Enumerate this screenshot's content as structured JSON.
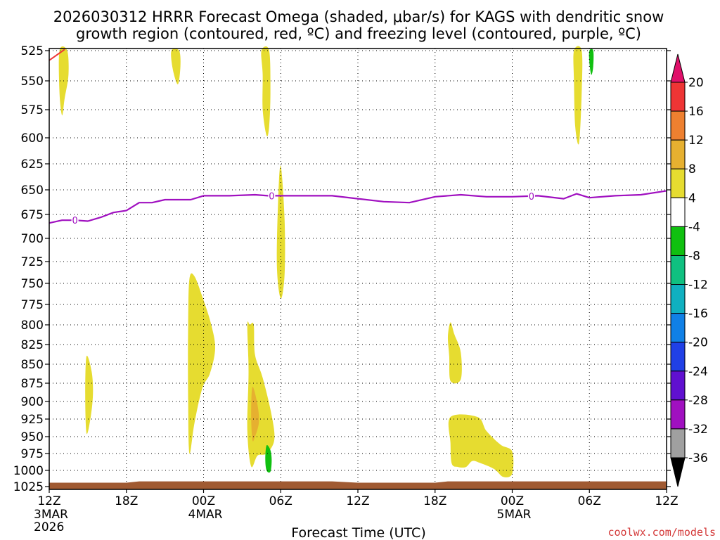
{
  "chart_data": {
    "type": "heatmap",
    "title_line1": "2026030312 HRRR Forecast Omega (shaded, μbar/s) for KAGS with dendritic snow",
    "title_line2": "growth region (contoured, red, ºC) and freezing level (contoured, purple, ºC)",
    "xlabel": "Forecast Time (UTC)",
    "credit": "coolwx.com/models",
    "x_range_hours": [
      0,
      48
    ],
    "x_ticks": [
      {
        "hour": 0,
        "label": "12Z",
        "date": "3MAR",
        "year": "2026"
      },
      {
        "hour": 6,
        "label": "18Z",
        "date": "",
        "year": ""
      },
      {
        "hour": 12,
        "label": "00Z",
        "date": "4MAR",
        "year": ""
      },
      {
        "hour": 18,
        "label": "06Z",
        "date": "",
        "year": ""
      },
      {
        "hour": 24,
        "label": "12Z",
        "date": "",
        "year": ""
      },
      {
        "hour": 30,
        "label": "18Z",
        "date": "",
        "year": ""
      },
      {
        "hour": 36,
        "label": "00Z",
        "date": "5MAR",
        "year": ""
      },
      {
        "hour": 42,
        "label": "06Z",
        "date": "",
        "year": ""
      },
      {
        "hour": 48,
        "label": "12Z",
        "date": "",
        "year": ""
      }
    ],
    "y_ticks_hPa": [
      525,
      550,
      575,
      600,
      625,
      650,
      675,
      700,
      725,
      750,
      775,
      800,
      825,
      850,
      875,
      900,
      925,
      950,
      975,
      1000,
      1025
    ],
    "y_range_hPa": [
      525,
      1025
    ],
    "colorbar": {
      "labels": [
        "20",
        "16",
        "12",
        "8",
        "4",
        "-4",
        "-8",
        "-12",
        "-16",
        "-20",
        "-24",
        "-28",
        "-32",
        "-36"
      ],
      "colors": [
        "#ee3535",
        "#ee8030",
        "#e6b030",
        "#e6dc30",
        "#ffffff",
        "#10c010",
        "#10c080",
        "#10b0c0",
        "#1080e6",
        "#2040e6",
        "#6010d0",
        "#a010c0",
        "#a0a0a0"
      ],
      "top_arrow_color": "#e0106a",
      "bottom_arrow_color": "#000000"
    },
    "freezing_level": {
      "name": "freezing level",
      "color": "#a010c0",
      "label": "0",
      "label_hours": [
        2,
        17.3,
        37.5
      ],
      "hours": [
        0,
        1,
        2,
        3,
        4,
        5,
        6,
        7,
        8,
        9,
        10,
        11,
        12,
        14,
        16,
        17,
        18,
        20,
        22,
        24,
        26,
        28,
        30,
        32,
        34,
        36,
        38,
        40,
        41,
        42,
        44,
        46,
        48
      ],
      "pressure_hPa": [
        684,
        681,
        681,
        682,
        678,
        673,
        671,
        663,
        663,
        660,
        660,
        660,
        656,
        656,
        655,
        656,
        656,
        656,
        656,
        659,
        662,
        663,
        657,
        655,
        657,
        657,
        656,
        659,
        654,
        658,
        656,
        655,
        651
      ]
    },
    "dgz_contour": {
      "name": "dendritic snow growth region",
      "color": "#ee3535",
      "hours": [
        0,
        1.2
      ],
      "pressure_hPa": [
        533,
        524
      ]
    },
    "omega_regions": [
      {
        "value": 4,
        "color": "#e6dc30",
        "points": [
          [
            0.8,
            525
          ],
          [
            1.4,
            525
          ],
          [
            1.5,
            545
          ],
          [
            1.2,
            565
          ],
          [
            1.0,
            580
          ],
          [
            0.8,
            560
          ]
        ]
      },
      {
        "value": 4,
        "color": "#e6dc30",
        "points": [
          [
            9.5,
            525
          ],
          [
            10.1,
            525
          ],
          [
            10.2,
            538
          ],
          [
            10.0,
            553
          ],
          [
            9.6,
            540
          ]
        ]
      },
      {
        "value": 4,
        "color": "#e6dc30",
        "points": [
          [
            16.5,
            525
          ],
          [
            17.1,
            525
          ],
          [
            17.2,
            560
          ],
          [
            17.1,
            590
          ],
          [
            16.9,
            598
          ],
          [
            16.6,
            575
          ],
          [
            16.6,
            545
          ]
        ]
      },
      {
        "value": 4,
        "color": "#e6dc30",
        "points": [
          [
            40.8,
            525
          ],
          [
            41.4,
            525
          ],
          [
            41.4,
            560
          ],
          [
            41.2,
            605
          ],
          [
            40.9,
            590
          ],
          [
            40.8,
            550
          ]
        ]
      },
      {
        "value": -4,
        "color": "#10c010",
        "points": [
          [
            42.0,
            525
          ],
          [
            42.3,
            525
          ],
          [
            42.3,
            538
          ],
          [
            42.15,
            545
          ],
          [
            42.0,
            535
          ]
        ]
      },
      {
        "value": 4,
        "color": "#e6dc30",
        "points": [
          [
            18.0,
            627
          ],
          [
            18.3,
            680
          ],
          [
            18.3,
            740
          ],
          [
            18.0,
            768
          ],
          [
            17.7,
            730
          ],
          [
            17.8,
            660
          ]
        ]
      },
      {
        "value": 4,
        "color": "#e6dc30",
        "points": [
          [
            10.9,
            745
          ],
          [
            11.3,
            742
          ],
          [
            12.0,
            770
          ],
          [
            12.6,
            800
          ],
          [
            12.9,
            830
          ],
          [
            12.5,
            862
          ],
          [
            11.9,
            882
          ],
          [
            11.3,
            930
          ],
          [
            10.9,
            975
          ],
          [
            10.8,
            900
          ],
          [
            10.8,
            800
          ]
        ]
      },
      {
        "value": 4,
        "color": "#e6dc30",
        "points": [
          [
            2.9,
            840
          ],
          [
            3.3,
            860
          ],
          [
            3.4,
            890
          ],
          [
            3.2,
            925
          ],
          [
            2.9,
            945
          ],
          [
            2.8,
            890
          ]
        ]
      },
      {
        "value": 4,
        "color": "#e6dc30",
        "points": [
          [
            15.6,
            800
          ],
          [
            15.9,
            800
          ],
          [
            16.0,
            838
          ],
          [
            16.6,
            868
          ],
          [
            17.3,
            920
          ],
          [
            17.5,
            955
          ],
          [
            16.9,
            975
          ],
          [
            16.2,
            978
          ],
          [
            15.7,
            994
          ],
          [
            15.4,
            940
          ],
          [
            15.5,
            860
          ],
          [
            15.4,
            800
          ]
        ]
      },
      {
        "value": 8,
        "color": "#e6b030",
        "points": [
          [
            15.8,
            880
          ],
          [
            16.2,
            905
          ],
          [
            16.3,
            930
          ],
          [
            16.0,
            950
          ],
          [
            15.8,
            955
          ],
          [
            15.7,
            920
          ]
        ]
      },
      {
        "value": -4,
        "color": "#10c010",
        "points": [
          [
            16.9,
            963
          ],
          [
            17.2,
            970
          ],
          [
            17.3,
            985
          ],
          [
            17.2,
            1002
          ],
          [
            16.9,
            1000
          ],
          [
            16.8,
            983
          ]
        ]
      },
      {
        "value": 4,
        "color": "#e6dc30",
        "points": [
          [
            31.2,
            797
          ],
          [
            31.5,
            812
          ],
          [
            32.0,
            835
          ],
          [
            32.0,
            870
          ],
          [
            31.2,
            872
          ],
          [
            31.1,
            840
          ],
          [
            31.0,
            815
          ]
        ]
      },
      {
        "value": 4,
        "color": "#e6dc30",
        "points": [
          [
            31.2,
            922
          ],
          [
            33.3,
            922
          ],
          [
            34.0,
            942
          ],
          [
            35.1,
            962
          ],
          [
            36.0,
            972
          ],
          [
            36.0,
            1005
          ],
          [
            35.3,
            1010
          ],
          [
            34.6,
            998
          ],
          [
            33.5,
            989
          ],
          [
            32.9,
            986
          ],
          [
            32.4,
            995
          ],
          [
            31.8,
            995
          ],
          [
            31.3,
            990
          ],
          [
            31.2,
            960
          ]
        ]
      }
    ],
    "terrain": {
      "color": "#a05a32",
      "hours": [
        0,
        6,
        7,
        22,
        24,
        30,
        31,
        48
      ],
      "pressure_hPa": [
        1019,
        1019,
        1017,
        1017,
        1019,
        1019,
        1017,
        1017
      ]
    }
  }
}
